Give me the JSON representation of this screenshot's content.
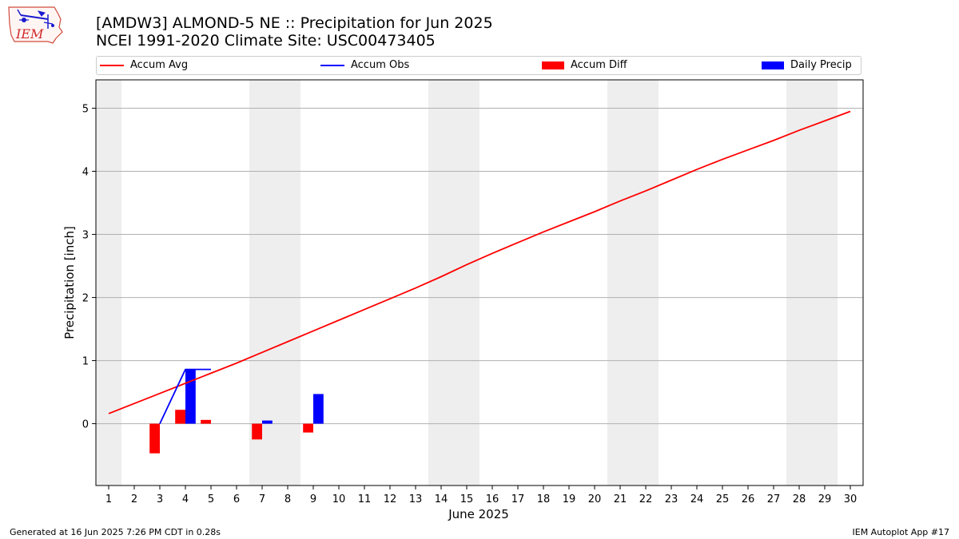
{
  "header": {
    "title_line1": "[AMDW3] ALMOND-5 NE :: Precipitation for Jun 2025",
    "title_line2": "NCEI 1991-2020 Climate Site: USC00473405",
    "logo_text": "IEM"
  },
  "legend": {
    "accum_avg": "Accum Avg",
    "accum_obs": "Accum Obs",
    "accum_diff": "Accum Diff",
    "daily_precip": "Daily Precip"
  },
  "footer": {
    "generated": "Generated at 16 Jun 2025 7:26 PM CDT in 0.28s",
    "app": "IEM Autoplot App #17"
  },
  "colors": {
    "avg_line": "#ff0000",
    "obs_line": "#0000ff",
    "diff_bar": "#ff0000",
    "daily_bar": "#0000ff",
    "weekend_shade": "#eeeeee",
    "grid": "#b0b0b0"
  },
  "chart_data": {
    "type": "bar",
    "xlabel": "June 2025",
    "ylabel": "Precipitation [inch]",
    "xlim": [
      0.5,
      30.5
    ],
    "ylim": [
      -0.98,
      5.45
    ],
    "y_ticks": [
      0,
      1,
      2,
      3,
      4,
      5
    ],
    "x_ticks": [
      1,
      2,
      3,
      4,
      5,
      6,
      7,
      8,
      9,
      10,
      11,
      12,
      13,
      14,
      15,
      16,
      17,
      18,
      19,
      20,
      21,
      22,
      23,
      24,
      25,
      26,
      27,
      28,
      29,
      30
    ],
    "grid": "y-axis horizontal",
    "legend_position": "top",
    "weekend_spans": [
      [
        0.5,
        1.5
      ],
      [
        6.5,
        8.5
      ],
      [
        13.5,
        15.5
      ],
      [
        20.5,
        22.5
      ],
      [
        27.5,
        29.5
      ]
    ],
    "series": [
      {
        "name": "Accum Avg",
        "type": "line",
        "x": [
          1,
          2,
          3,
          4,
          5,
          6,
          7,
          8,
          9,
          10,
          11,
          12,
          13,
          14,
          15,
          16,
          17,
          18,
          19,
          20,
          21,
          22,
          23,
          24,
          25,
          26,
          27,
          28,
          29,
          30
        ],
        "values": [
          0.16,
          0.32,
          0.48,
          0.64,
          0.8,
          0.96,
          1.13,
          1.3,
          1.47,
          1.64,
          1.81,
          1.98,
          2.15,
          2.33,
          2.52,
          2.7,
          2.87,
          3.04,
          3.2,
          3.36,
          3.53,
          3.69,
          3.86,
          4.03,
          4.19,
          4.34,
          4.49,
          4.65,
          4.8,
          4.95
        ]
      },
      {
        "name": "Accum Obs",
        "type": "line",
        "x": [
          3,
          4,
          5
        ],
        "values": [
          0.0,
          0.86,
          0.86
        ]
      },
      {
        "name": "Accum Diff",
        "type": "bar",
        "x": [
          3,
          4,
          5,
          7,
          9
        ],
        "values": [
          -0.47,
          0.22,
          0.06,
          -0.25,
          -0.14
        ]
      },
      {
        "name": "Daily Precip",
        "type": "bar",
        "x": [
          4,
          7,
          9
        ],
        "values": [
          0.86,
          0.05,
          0.47
        ]
      }
    ]
  }
}
